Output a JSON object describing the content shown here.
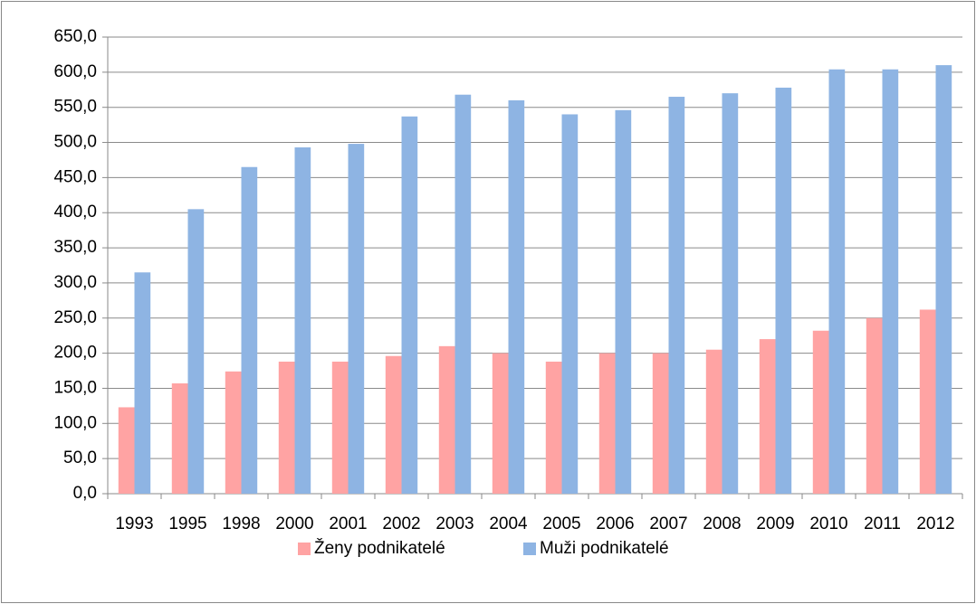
{
  "chart_data": {
    "type": "bar",
    "categories": [
      "1993",
      "1995",
      "1998",
      "2000",
      "2001",
      "2002",
      "2003",
      "2004",
      "2005",
      "2006",
      "2007",
      "2008",
      "2009",
      "2010",
      "2011",
      "2012"
    ],
    "series": [
      {
        "name": "Ženy podnikatelé",
        "color": "#ffa3a3",
        "values": [
          123,
          157,
          174,
          188,
          188,
          196,
          210,
          200,
          188,
          200,
          200,
          205,
          220,
          232,
          250,
          262
        ]
      },
      {
        "name": "Muži podnikatelé",
        "color": "#8eb4e3",
        "values": [
          315,
          405,
          465,
          493,
          498,
          537,
          568,
          560,
          540,
          546,
          565,
          570,
          578,
          604,
          604,
          610
        ]
      }
    ],
    "ylim": [
      0,
      650
    ],
    "yticks": [
      {
        "value": 0,
        "label": "0,0"
      },
      {
        "value": 50,
        "label": "50,0"
      },
      {
        "value": 100,
        "label": "100,0"
      },
      {
        "value": 150,
        "label": "150,0"
      },
      {
        "value": 200,
        "label": "200,0"
      },
      {
        "value": 250,
        "label": "250,0"
      },
      {
        "value": 300,
        "label": "300,0"
      },
      {
        "value": 350,
        "label": "350,0"
      },
      {
        "value": 400,
        "label": "400,0"
      },
      {
        "value": 450,
        "label": "450,0"
      },
      {
        "value": 500,
        "label": "500,0"
      },
      {
        "value": 550,
        "label": "550,0"
      },
      {
        "value": 600,
        "label": "600,0"
      },
      {
        "value": 650,
        "label": "650,0"
      }
    ],
    "grid": true,
    "legend": "bottom"
  }
}
